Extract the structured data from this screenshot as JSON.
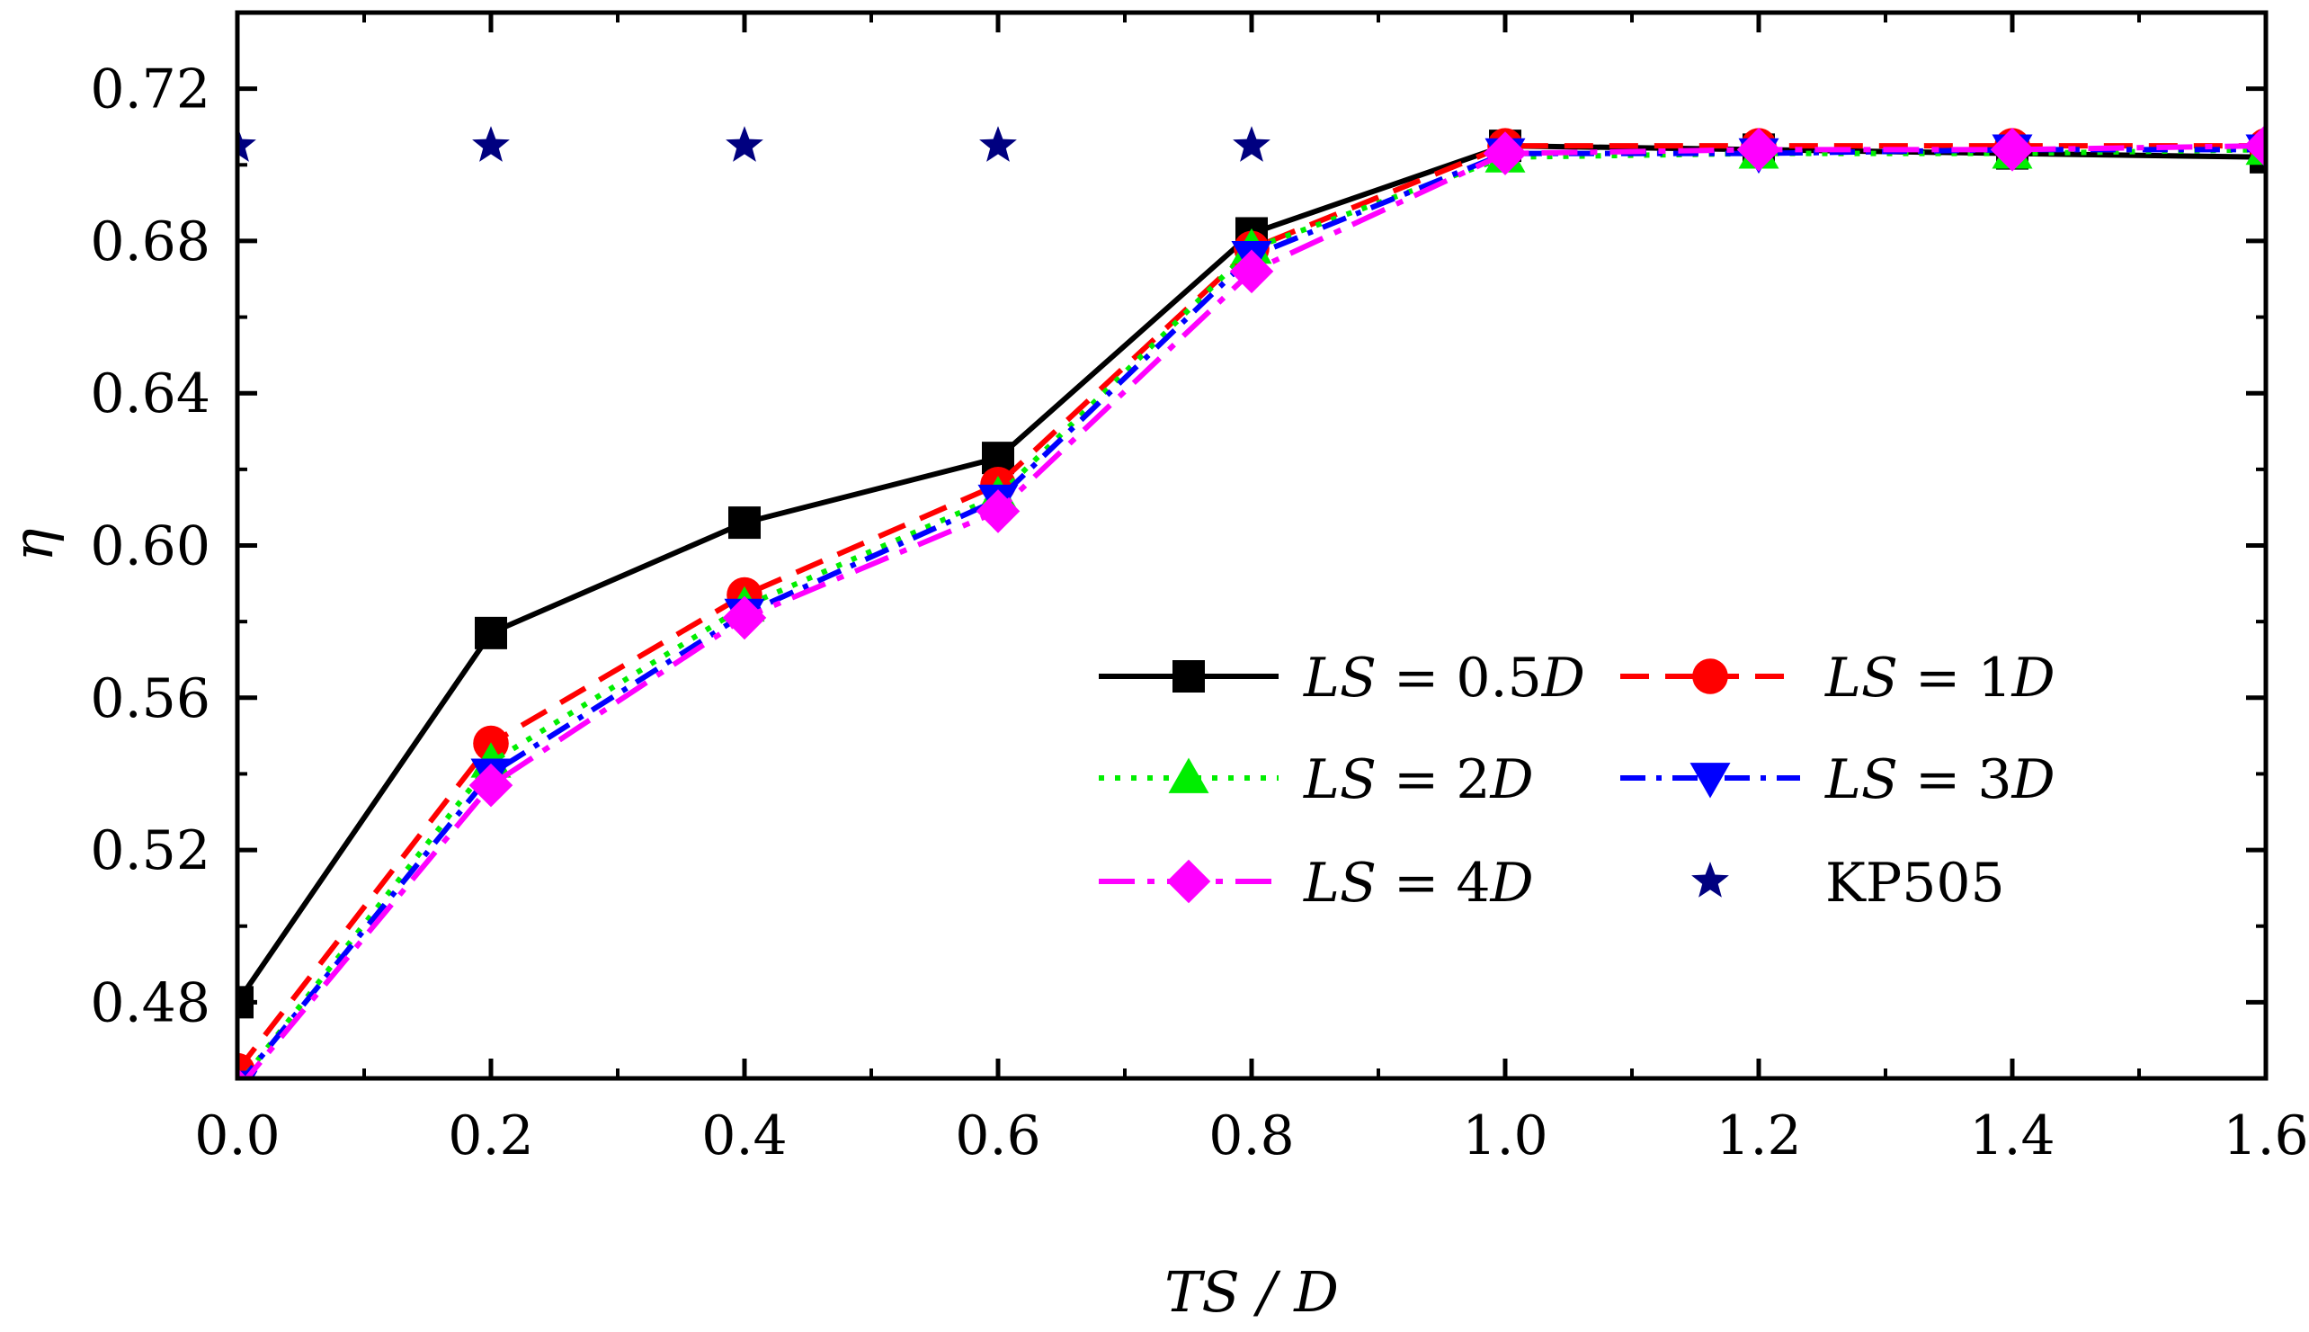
{
  "chart_data": {
    "type": "line",
    "title": "",
    "xlabel": "TS / D",
    "ylabel": "η",
    "xlim": [
      0.0,
      1.6
    ],
    "ylim": [
      0.46,
      0.74
    ],
    "xticks": [
      0.0,
      0.2,
      0.4,
      0.6,
      0.8,
      1.0,
      1.2,
      1.4,
      1.6
    ],
    "yticks": [
      0.48,
      0.52,
      0.56,
      0.6,
      0.64,
      0.68,
      0.72
    ],
    "x_tick_labels": [
      "0.0",
      "0.2",
      "0.4",
      "0.6",
      "0.8",
      "1.0",
      "1.2",
      "1.4",
      "1.6"
    ],
    "y_tick_labels": [
      "0.48",
      "0.52",
      "0.56",
      "0.60",
      "0.64",
      "0.68",
      "0.72"
    ],
    "x": [
      0.0,
      0.2,
      0.4,
      0.6,
      0.8,
      1.0,
      1.2,
      1.4,
      1.6
    ],
    "grid": false,
    "legend_position": "center-right",
    "series": [
      {
        "name": "LS = 0.5D",
        "label_parts": [
          {
            "t": "LS",
            "i": true
          },
          {
            "t": " = 0.5",
            "i": false
          },
          {
            "t": "D",
            "i": true
          }
        ],
        "values": [
          0.48,
          0.577,
          0.606,
          0.623,
          0.682,
          0.705,
          0.704,
          0.703,
          0.702
        ],
        "color": "#000000",
        "marker": "square",
        "dash": "solid"
      },
      {
        "name": "LS = 1D",
        "label_parts": [
          {
            "t": "LS",
            "i": true
          },
          {
            "t": " = 1",
            "i": false
          },
          {
            "t": "D",
            "i": true
          }
        ],
        "values": [
          0.462,
          0.548,
          0.587,
          0.616,
          0.678,
          0.705,
          0.705,
          0.705,
          0.705
        ],
        "color": "#ff0000",
        "marker": "circle",
        "dash": "dash"
      },
      {
        "name": "LS = 2D",
        "label_parts": [
          {
            "t": "LS",
            "i": true
          },
          {
            "t": " = 2",
            "i": false
          },
          {
            "t": "D",
            "i": true
          }
        ],
        "values": [
          0.458,
          0.543,
          0.584,
          0.613,
          0.678,
          0.702,
          0.703,
          0.703,
          0.704
        ],
        "color": "#00ee00",
        "marker": "triangle-up",
        "dash": "dot"
      },
      {
        "name": "LS = 3D",
        "label_parts": [
          {
            "t": "LS",
            "i": true
          },
          {
            "t": " = 3",
            "i": false
          },
          {
            "t": "D",
            "i": true
          }
        ],
        "values": [
          0.458,
          0.54,
          0.582,
          0.612,
          0.676,
          0.703,
          0.703,
          0.704,
          0.704
        ],
        "color": "#0000ff",
        "marker": "triangle-down",
        "dash": "dashdot"
      },
      {
        "name": "LS = 4D",
        "label_parts": [
          {
            "t": "LS",
            "i": true
          },
          {
            "t": " = 4",
            "i": false
          },
          {
            "t": "D",
            "i": true
          }
        ],
        "values": [
          0.457,
          0.537,
          0.581,
          0.609,
          0.672,
          0.703,
          0.704,
          0.704,
          0.705
        ],
        "color": "#ff00ff",
        "marker": "diamond",
        "dash": "dashdotlong"
      },
      {
        "name": "KP505",
        "label_parts": [
          {
            "t": "KP505",
            "i": false
          }
        ],
        "values": [
          0.705,
          0.705,
          0.705,
          0.705,
          0.705,
          null,
          null,
          null,
          null
        ],
        "color": "#000080",
        "marker": "star",
        "dash": "none"
      }
    ]
  }
}
